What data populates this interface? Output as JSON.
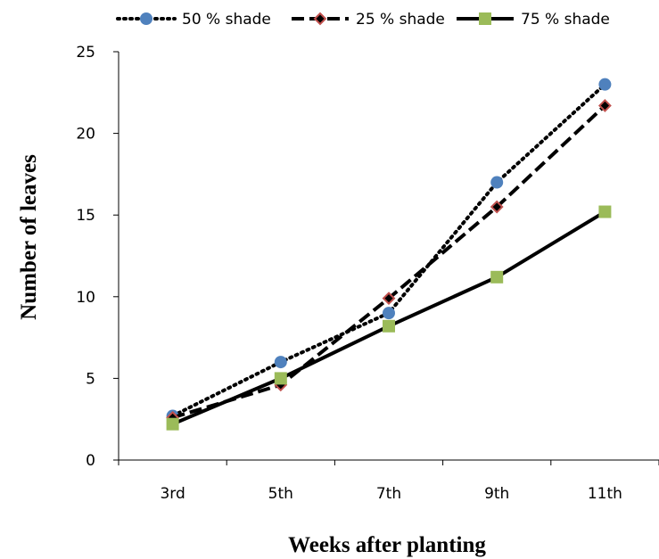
{
  "chart_data": {
    "type": "line",
    "categories": [
      "3rd",
      "5th",
      "7th",
      "9th",
      "11th"
    ],
    "series": [
      {
        "name": "50 % shade",
        "values": [
          2.7,
          6.0,
          9.0,
          17.0,
          23.0
        ],
        "line_style": "dotted",
        "marker": "circle",
        "marker_color": "#4f81bd",
        "line_color": "#000000"
      },
      {
        "name": "25 % shade",
        "values": [
          2.6,
          4.6,
          9.9,
          15.5,
          21.7
        ],
        "line_style": "dashed",
        "marker": "diamond",
        "marker_color": "#c0504d",
        "line_color": "#000000"
      },
      {
        "name": "75 % shade",
        "values": [
          2.2,
          5.0,
          8.2,
          11.2,
          15.2
        ],
        "line_style": "solid",
        "marker": "square",
        "marker_color": "#9bbb59",
        "line_color": "#000000"
      }
    ],
    "xlabel": "Weeks after planting",
    "ylabel": "Number of leaves",
    "ylim": [
      0,
      25
    ],
    "yticks": [
      0,
      5,
      10,
      15,
      20,
      25
    ],
    "grid": false,
    "legend_position": "top"
  }
}
